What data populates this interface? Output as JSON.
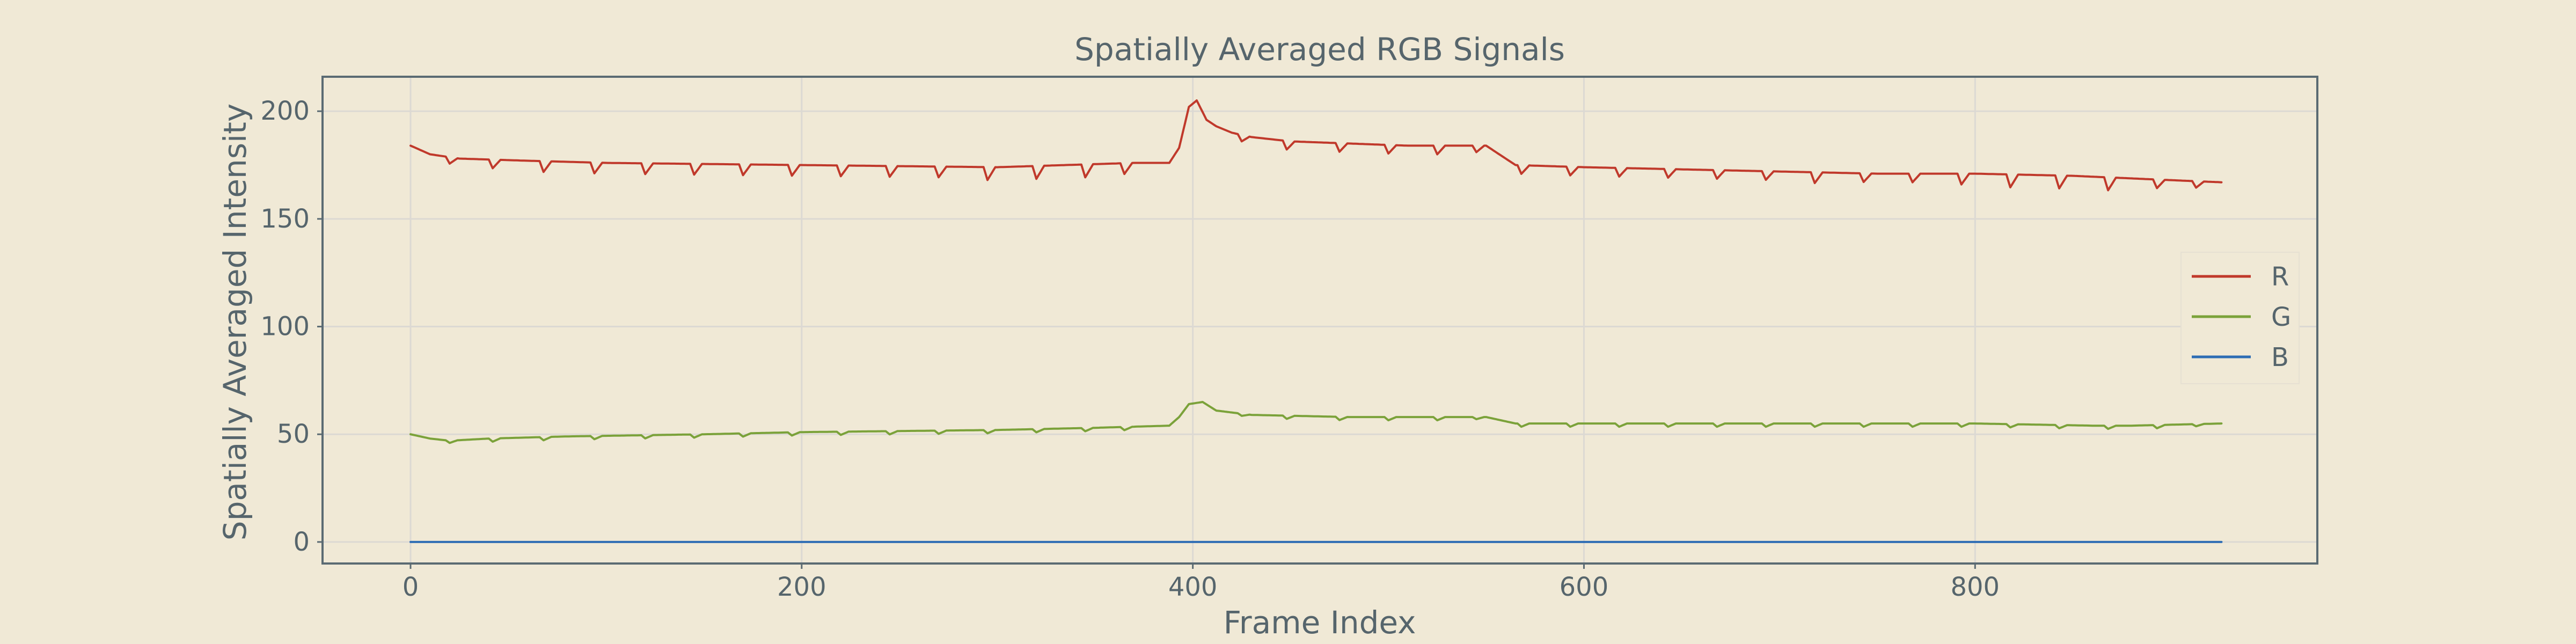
{
  "chart_data": {
    "type": "line",
    "title": "Spatially Averaged RGB Signals",
    "xlabel": "Frame Index",
    "ylabel": "Spatially Averaged Intensity",
    "xlim": [
      -45,
      975
    ],
    "ylim": [
      -10,
      216
    ],
    "xticks": [
      0,
      200,
      400,
      600,
      800
    ],
    "yticks": [
      0,
      50,
      100,
      150,
      200
    ],
    "grid": true,
    "legend_position": "right",
    "n_frames": 926,
    "series": [
      {
        "name": "R",
        "color": "#c0392b",
        "base": [
          [
            0,
            184
          ],
          [
            5,
            182
          ],
          [
            10,
            180
          ],
          [
            25,
            178
          ],
          [
            60,
            177
          ],
          [
            100,
            176
          ],
          [
            200,
            175
          ],
          [
            300,
            174
          ],
          [
            370,
            176
          ],
          [
            388,
            176
          ],
          [
            393,
            183
          ],
          [
            398,
            202
          ],
          [
            402,
            205
          ],
          [
            407,
            196
          ],
          [
            412,
            193
          ],
          [
            420,
            190
          ],
          [
            430,
            188
          ],
          [
            450,
            186
          ],
          [
            480,
            185
          ],
          [
            510,
            184
          ],
          [
            550,
            184
          ],
          [
            565,
            175
          ],
          [
            600,
            174
          ],
          [
            650,
            173
          ],
          [
            700,
            172
          ],
          [
            750,
            171
          ],
          [
            800,
            171
          ],
          [
            850,
            170
          ],
          [
            900,
            168
          ],
          [
            926,
            167
          ]
        ],
        "dips": [
          [
            20,
            3
          ],
          [
            42,
            4
          ],
          [
            68,
            5
          ],
          [
            94,
            5
          ],
          [
            120,
            5
          ],
          [
            145,
            5
          ],
          [
            170,
            5
          ],
          [
            195,
            5
          ],
          [
            220,
            5
          ],
          [
            245,
            5
          ],
          [
            270,
            5
          ],
          [
            295,
            6
          ],
          [
            320,
            6
          ],
          [
            345,
            6
          ],
          [
            365,
            5
          ],
          [
            425,
            3
          ],
          [
            448,
            4
          ],
          [
            475,
            4
          ],
          [
            500,
            4
          ],
          [
            525,
            4
          ],
          [
            545,
            3
          ],
          [
            568,
            4
          ],
          [
            593,
            4
          ],
          [
            618,
            4
          ],
          [
            643,
            4
          ],
          [
            668,
            4
          ],
          [
            693,
            4
          ],
          [
            718,
            5
          ],
          [
            743,
            4
          ],
          [
            768,
            4
          ],
          [
            793,
            5
          ],
          [
            818,
            6
          ],
          [
            843,
            6
          ],
          [
            868,
            6
          ],
          [
            893,
            4
          ],
          [
            913,
            3
          ]
        ]
      },
      {
        "name": "G",
        "color": "#7ba23a",
        "base": [
          [
            0,
            50
          ],
          [
            10,
            48
          ],
          [
            20,
            47
          ],
          [
            40,
            48
          ],
          [
            80,
            49
          ],
          [
            150,
            50
          ],
          [
            200,
            51
          ],
          [
            300,
            52
          ],
          [
            350,
            53
          ],
          [
            388,
            54
          ],
          [
            393,
            58
          ],
          [
            398,
            64
          ],
          [
            405,
            65
          ],
          [
            412,
            61
          ],
          [
            430,
            59
          ],
          [
            480,
            58
          ],
          [
            520,
            58
          ],
          [
            550,
            58
          ],
          [
            565,
            55
          ],
          [
            600,
            55
          ],
          [
            700,
            55
          ],
          [
            800,
            55
          ],
          [
            860,
            54
          ],
          [
            880,
            54
          ],
          [
            926,
            55
          ]
        ],
        "dips": [
          [
            20,
            1
          ],
          [
            42,
            1.5
          ],
          [
            68,
            1.5
          ],
          [
            94,
            1.5
          ],
          [
            120,
            1.5
          ],
          [
            145,
            1.5
          ],
          [
            170,
            1.5
          ],
          [
            195,
            1.5
          ],
          [
            220,
            1.5
          ],
          [
            245,
            1.5
          ],
          [
            270,
            1.5
          ],
          [
            295,
            1.5
          ],
          [
            320,
            1.5
          ],
          [
            345,
            1.5
          ],
          [
            365,
            1.5
          ],
          [
            425,
            1
          ],
          [
            448,
            1.5
          ],
          [
            475,
            1.5
          ],
          [
            500,
            1.5
          ],
          [
            525,
            1.5
          ],
          [
            545,
            1
          ],
          [
            568,
            1.5
          ],
          [
            593,
            1.5
          ],
          [
            618,
            1.5
          ],
          [
            643,
            1.5
          ],
          [
            668,
            1.5
          ],
          [
            693,
            1.5
          ],
          [
            718,
            1.5
          ],
          [
            743,
            1.5
          ],
          [
            768,
            1.5
          ],
          [
            793,
            1.5
          ],
          [
            818,
            1.5
          ],
          [
            843,
            1.5
          ],
          [
            868,
            1.5
          ],
          [
            893,
            1.5
          ],
          [
            913,
            1
          ]
        ]
      },
      {
        "name": "B",
        "color": "#2e6db4",
        "base": [
          [
            0,
            0
          ],
          [
            926,
            0
          ]
        ],
        "dips": []
      }
    ]
  }
}
